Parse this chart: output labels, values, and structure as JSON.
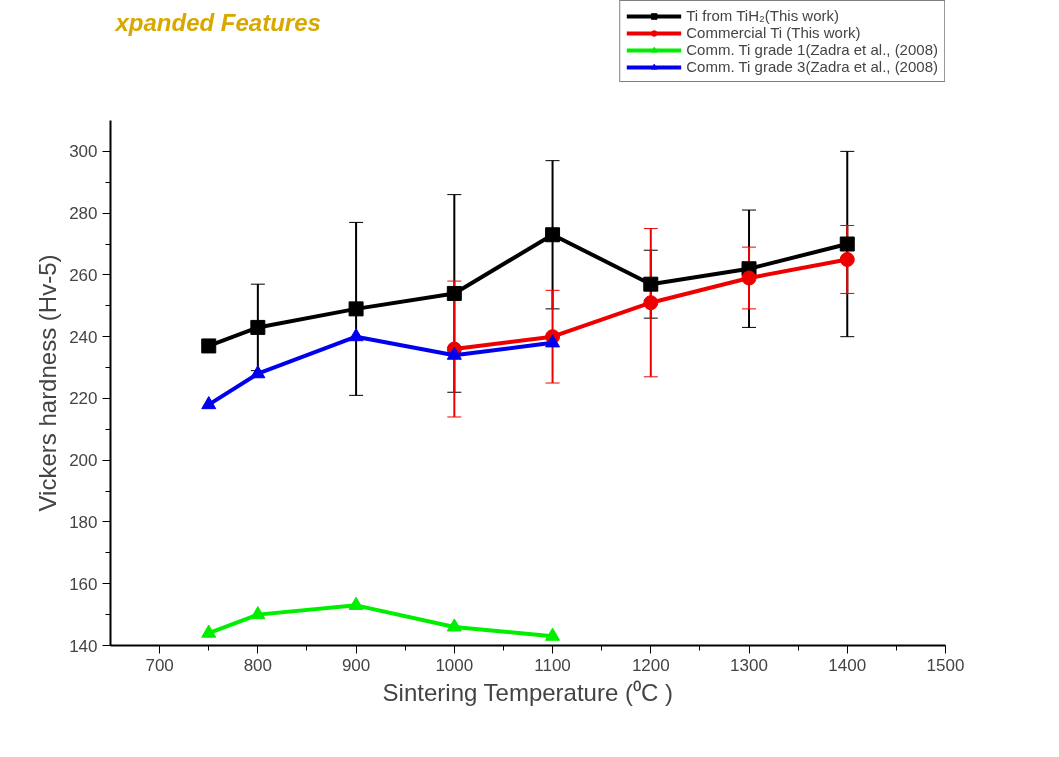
{
  "chart_data": {
    "type": "line",
    "xlabel": "Sintering Temperature (⁰C )",
    "ylabel": "Vickers hardness (Hv-5)",
    "annotations": [
      "xpanded Features"
    ],
    "xlim": [
      650,
      1500
    ],
    "xticks": [
      700,
      800,
      900,
      1000,
      1100,
      1200,
      1300,
      1400,
      1500
    ],
    "ylim": [
      140,
      310
    ],
    "yticks": [
      140,
      160,
      180,
      200,
      220,
      240,
      260,
      280,
      300
    ],
    "grid": false,
    "legend": "top right",
    "line_style": "solid",
    "series": [
      {
        "name": "Ti from TiH₂(This work)",
        "color": "#000000",
        "marker": "square",
        "x": [
          750,
          800,
          900,
          1000,
          1100,
          1200,
          1300,
          1400
        ],
        "values": [
          237,
          243,
          249,
          254,
          273,
          257,
          262,
          270
        ],
        "errors": [
          null,
          [
            229,
            257
          ],
          [
            221,
            277
          ],
          [
            222,
            286
          ],
          [
            249,
            297
          ],
          [
            246,
            268
          ],
          [
            243,
            281
          ],
          [
            240,
            300
          ]
        ]
      },
      {
        "name": "Commercial Ti (This work)",
        "color": "#ee0000",
        "marker": "circle",
        "x": [
          1000,
          1100,
          1200,
          1300,
          1400
        ],
        "values": [
          236,
          240,
          251,
          259,
          265
        ],
        "errors": [
          [
            214,
            258
          ],
          [
            225,
            255
          ],
          [
            227,
            275
          ],
          [
            249,
            269
          ],
          [
            254,
            276
          ]
        ]
      },
      {
        "name": "Comm. Ti grade 1(Zadra et al., (2008)",
        "color": "#00ee00",
        "marker": "triangle",
        "x": [
          750,
          800,
          900,
          1000,
          1100
        ],
        "values": [
          144,
          150,
          153,
          146,
          143
        ]
      },
      {
        "name": "Comm. Ti grade 3(Zadra et al., (2008)",
        "color": "#0000ee",
        "marker": "triangle",
        "x": [
          750,
          800,
          900,
          1000,
          1100
        ],
        "values": [
          218,
          228,
          240,
          234,
          238
        ]
      }
    ]
  }
}
